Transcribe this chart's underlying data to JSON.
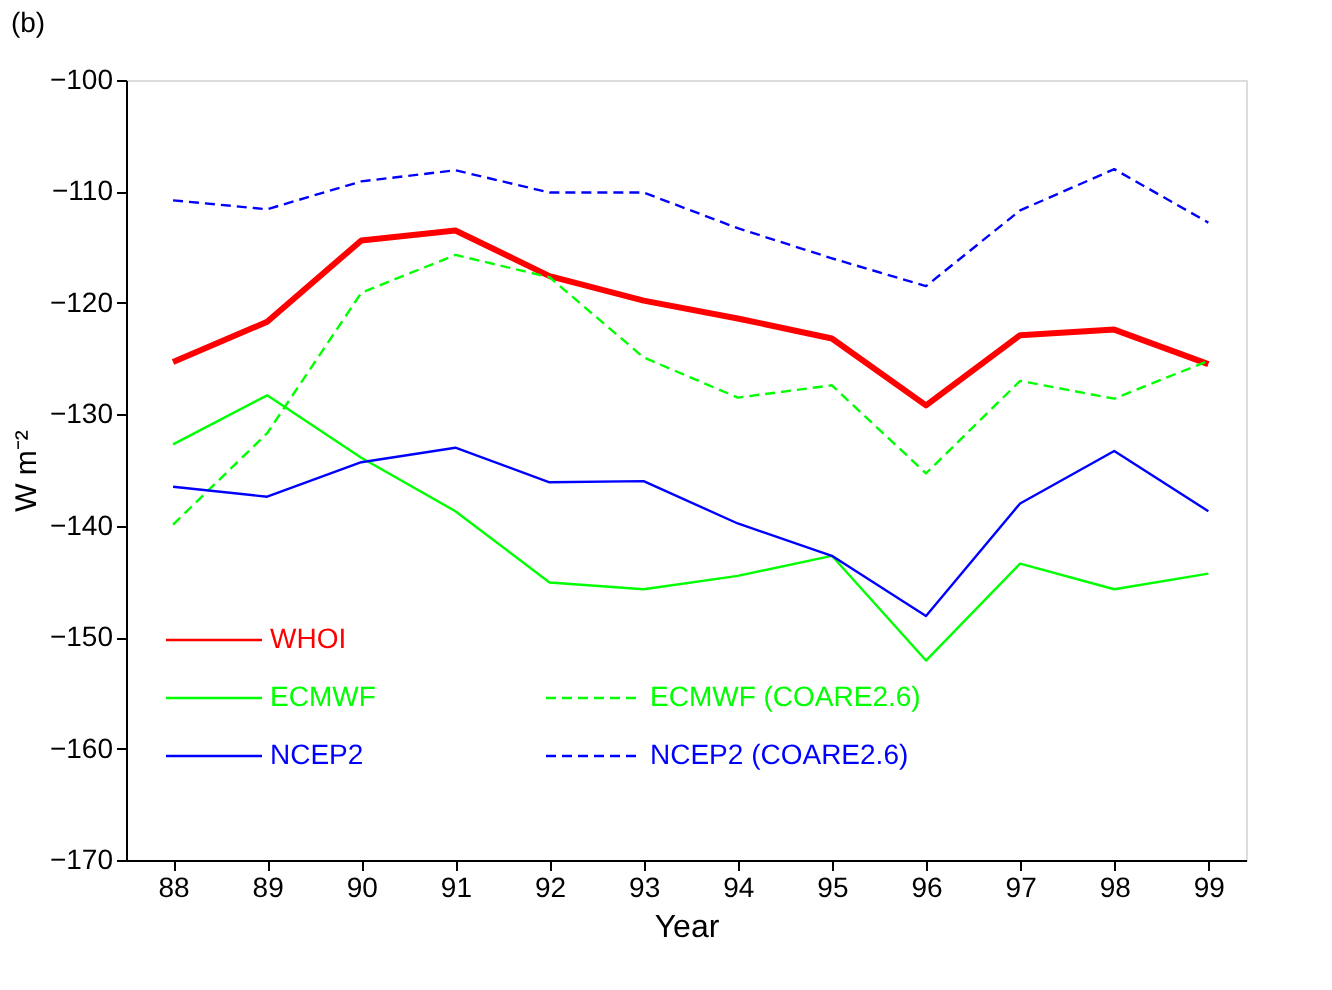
{
  "chart_data": {
    "type": "line",
    "title": "(b)",
    "xlabel": "Year",
    "ylabel": "W m⁻²",
    "x": [
      88,
      89,
      90,
      91,
      92,
      93,
      94,
      95,
      96,
      97,
      98,
      99
    ],
    "xlim": [
      87.5,
      99.4
    ],
    "xticks": [
      88,
      89,
      90,
      91,
      92,
      93,
      94,
      95,
      96,
      97,
      98,
      99
    ],
    "ylim": [
      -170,
      -100
    ],
    "yticks": [
      -170,
      -160,
      -150,
      -140,
      -130,
      -120,
      -110,
      -100
    ],
    "grid": false,
    "legend": "bottom left",
    "marker": "none",
    "series": [
      {
        "name": "WHOI",
        "color": "#ff0000",
        "line_style": "solid",
        "values": [
          -125.3,
          -121.7,
          -114.4,
          -113.5,
          -117.6,
          -119.8,
          -121.4,
          -123.2,
          -129.2,
          -122.9,
          -122.4,
          -125.5
        ]
      },
      {
        "name": "ECMWF",
        "color": "#00ff00",
        "line_style": "solid",
        "values": [
          -132.7,
          -128.3,
          -133.9,
          -138.7,
          -145.1,
          -145.7,
          -144.5,
          -142.7,
          -152.1,
          -143.4,
          -145.7,
          -144.3
        ]
      },
      {
        "name": "ECMWF (COARE2.6)",
        "color": "#00ff00",
        "line_style": "dashed",
        "values": [
          -139.9,
          -131.7,
          -119.1,
          -115.7,
          -117.7,
          -124.9,
          -128.5,
          -127.4,
          -135.3,
          -127.0,
          -128.6,
          -125.2
        ]
      },
      {
        "name": "NCEP2",
        "color": "#0000ff",
        "line_style": "solid",
        "values": [
          -136.5,
          -137.4,
          -134.3,
          -133.0,
          -136.1,
          -136.0,
          -139.8,
          -142.7,
          -148.1,
          -138.0,
          -133.3,
          -138.7
        ]
      },
      {
        "name": "NCEP2 (COARE2.6)",
        "color": "#0000ff",
        "line_style": "dashed",
        "values": [
          -110.8,
          -111.6,
          -109.1,
          -108.1,
          -110.1,
          -110.1,
          -113.3,
          -116.0,
          -118.5,
          -111.7,
          -108.0,
          -112.8
        ]
      }
    ]
  }
}
